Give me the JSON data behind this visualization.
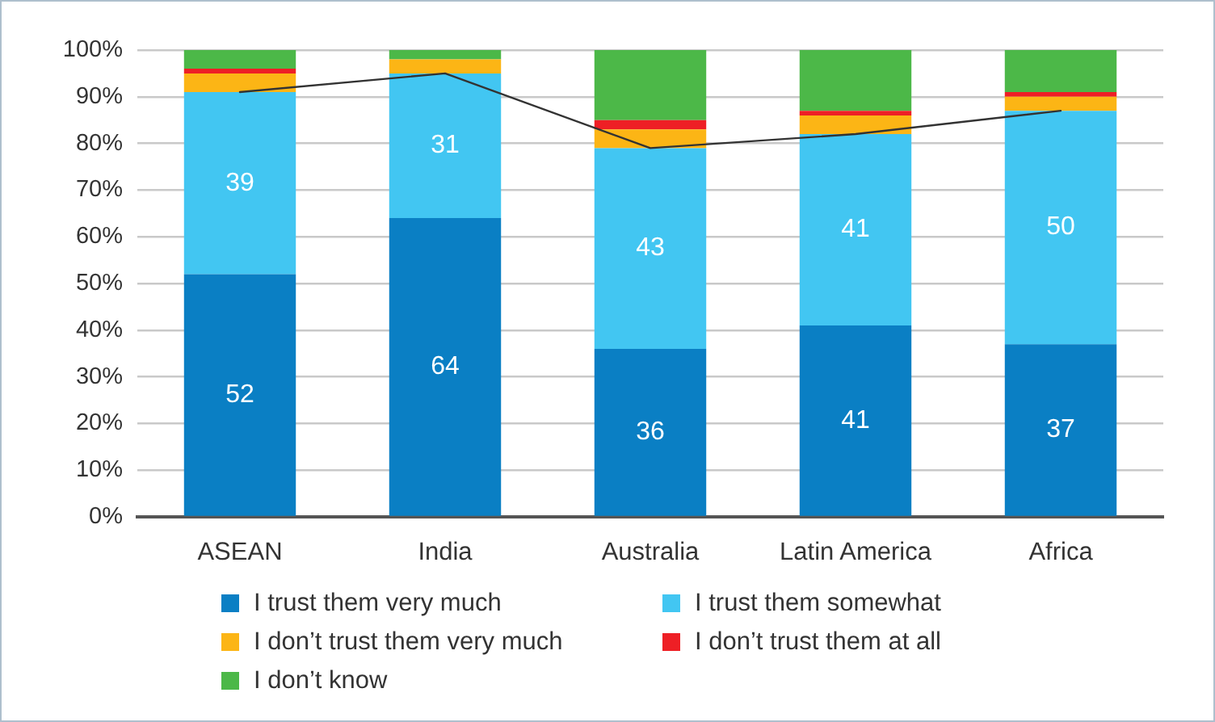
{
  "chart_data": {
    "type": "bar",
    "stacked": true,
    "categories": [
      "ASEAN",
      "India",
      "Australia",
      "Latin America",
      "Africa"
    ],
    "series": [
      {
        "name": "I trust them very much",
        "color": "#0a7fc4",
        "values": [
          52,
          64,
          36,
          41,
          37
        ],
        "value_labels": [
          "52",
          "64",
          "36",
          "41",
          "37"
        ]
      },
      {
        "name": "I trust them somewhat",
        "color": "#42c6f2",
        "values": [
          39,
          31,
          43,
          41,
          50
        ],
        "value_labels": [
          "39",
          "31",
          "43",
          "41",
          "50"
        ]
      },
      {
        "name": "I don’t trust them very much",
        "color": "#fcb515",
        "values": [
          4,
          3,
          4,
          4,
          3
        ]
      },
      {
        "name": "I don’t trust them at all",
        "color": "#ee1f25",
        "values": [
          1,
          0,
          2,
          1,
          1
        ]
      },
      {
        "name": "I don’t know",
        "color": "#4cb848",
        "values": [
          4,
          2,
          15,
          13,
          9
        ]
      },
      {
        "type": "line",
        "color": "#333333",
        "values": [
          91,
          95,
          79,
          82,
          87
        ]
      }
    ],
    "ylim": [
      0,
      100
    ],
    "yticks": [
      {
        "value": 0,
        "label": "0%"
      },
      {
        "value": 10,
        "label": "10%"
      },
      {
        "value": 20,
        "label": "20%"
      },
      {
        "value": 30,
        "label": "30%"
      },
      {
        "value": 40,
        "label": "40%"
      },
      {
        "value": 50,
        "label": "50%"
      },
      {
        "value": 60,
        "label": "60%"
      },
      {
        "value": 70,
        "label": "70%"
      },
      {
        "value": 80,
        "label": "80%"
      },
      {
        "value": 90,
        "label": "90%"
      },
      {
        "value": 100,
        "label": "100%"
      }
    ],
    "grid": "y",
    "legend": "bottom"
  }
}
